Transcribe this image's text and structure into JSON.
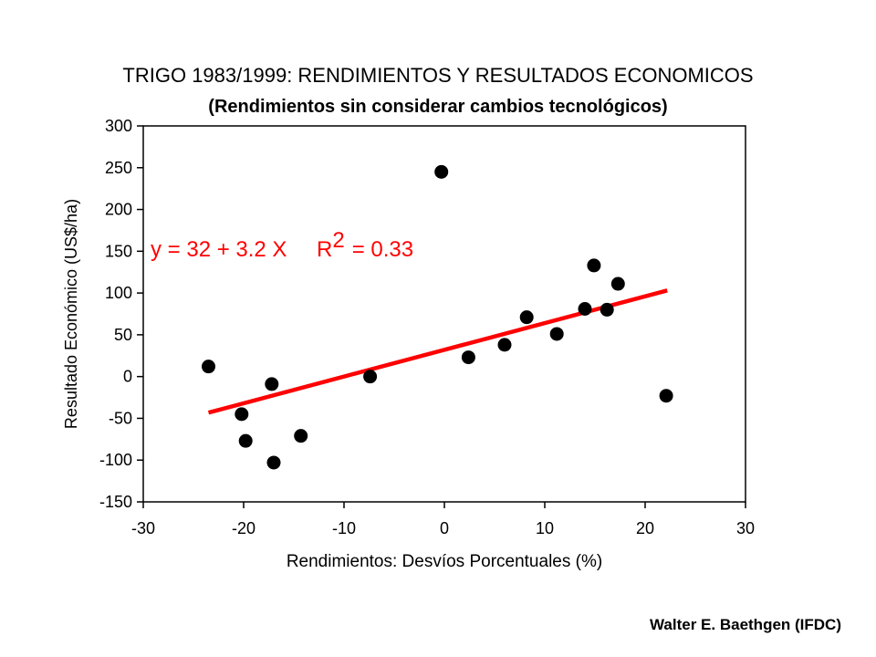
{
  "chart_data": {
    "type": "scatter",
    "title": "TRIGO 1983/1999:  RENDIMIENTOS  Y  RESULTADOS ECONOMICOS",
    "subtitle": "(Rendimientos sin considerar cambios tecnológicos)",
    "xlabel": "Rendimientos: Desvíos Porcentuales (%)",
    "ylabel": "Resultado Económico (US$/ha)",
    "xlim": [
      -30,
      30
    ],
    "ylim": [
      -150,
      300
    ],
    "x_ticks": [
      -30,
      -20,
      -10,
      0,
      10,
      20,
      30
    ],
    "y_ticks": [
      300,
      250,
      200,
      150,
      100,
      50,
      0,
      -50,
      -100,
      -150
    ],
    "grid": false,
    "legend": "none",
    "series": [
      {
        "color": "#000000",
        "points": [
          {
            "x": -23.5,
            "y": 12
          },
          {
            "x": -20.2,
            "y": -45
          },
          {
            "x": -19.8,
            "y": -77
          },
          {
            "x": -17.2,
            "y": -9
          },
          {
            "x": -17.0,
            "y": -103
          },
          {
            "x": -14.3,
            "y": -71
          },
          {
            "x": -7.4,
            "y": 0
          },
          {
            "x": -0.3,
            "y": 245
          },
          {
            "x": 2.4,
            "y": 23
          },
          {
            "x": 6.0,
            "y": 38
          },
          {
            "x": 8.2,
            "y": 71
          },
          {
            "x": 11.2,
            "y": 51
          },
          {
            "x": 14.0,
            "y": 81
          },
          {
            "x": 14.9,
            "y": 133
          },
          {
            "x": 16.2,
            "y": 80
          },
          {
            "x": 17.3,
            "y": 111
          },
          {
            "x": 22.1,
            "y": -23
          }
        ]
      }
    ],
    "trendline": {
      "intercept": 32,
      "slope": 3.2,
      "x_range": [
        -23.5,
        22.2
      ],
      "color": "#ff0000"
    },
    "annotation": {
      "equation": "y = 32 + 3.2 X",
      "r_label": "R",
      "r_exponent": "2",
      "r_value": "= 0.33",
      "color": "#ff0000"
    }
  },
  "credit": "Walter E.  Baethgen (IFDC)"
}
